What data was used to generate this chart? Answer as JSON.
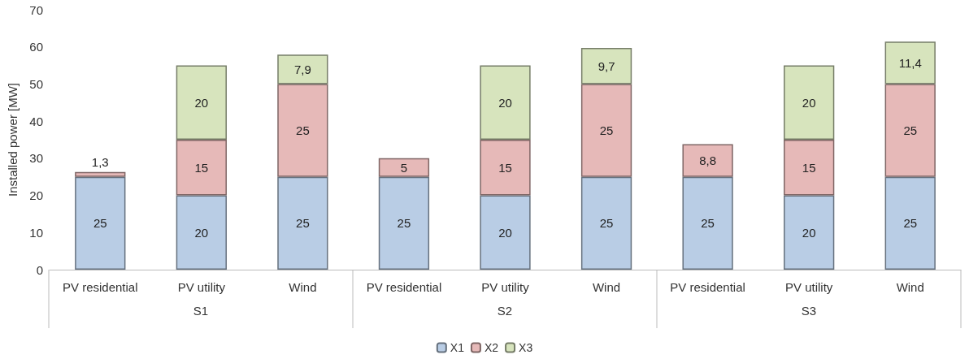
{
  "chart_data": {
    "type": "bar",
    "stacked": true,
    "ylabel": "Installed power [MW]",
    "categories": [
      "PV residential",
      "PV utility",
      "Wind",
      "PV residential",
      "PV utility",
      "Wind",
      "PV residential",
      "PV utility",
      "Wind"
    ],
    "annotations": [
      "S1",
      "S2",
      "S3"
    ],
    "series": [
      {
        "name": "X1",
        "color": "#b9cde5",
        "values": [
          25,
          20,
          25,
          25,
          20,
          25,
          25,
          20,
          25
        ],
        "value_labels": [
          "25",
          "20",
          "25",
          "25",
          "20",
          "25",
          "25",
          "20",
          "25"
        ]
      },
      {
        "name": "X2",
        "color": "#e6b9b8",
        "values": [
          1.3,
          15,
          25,
          5,
          15,
          25,
          8.8,
          15,
          25
        ],
        "value_labels": [
          "1,3",
          "15",
          "25",
          "5",
          "15",
          "25",
          "8,8",
          "15",
          "25"
        ]
      },
      {
        "name": "X3",
        "color": "#d7e4bd",
        "values": [
          null,
          20,
          7.9,
          null,
          20,
          9.7,
          null,
          20,
          11.4
        ],
        "value_labels": [
          null,
          "20",
          "7,9",
          null,
          "20",
          "9,7",
          null,
          "20",
          "11,4"
        ]
      }
    ],
    "ylim": [
      0,
      70
    ],
    "yticks": [
      0,
      10,
      20,
      30,
      40,
      50,
      60,
      70
    ],
    "grid": false,
    "legend": "bottom"
  }
}
